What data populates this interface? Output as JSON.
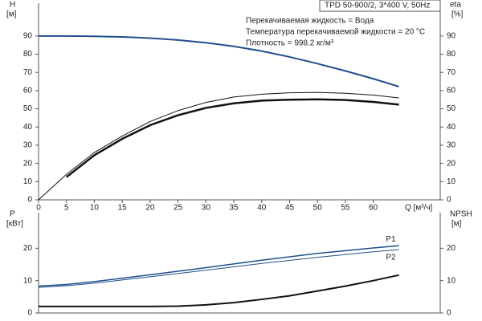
{
  "chart_data": [
    {
      "type": "line",
      "title": "TPD 50-900/2, 3*400 V, 50Hz",
      "annotations": [
        "Перекачиваемая жидкость = Вода",
        "Температура перекачиваемой жидкости = 20 °C",
        "Плотность = 998.2 кг/м³"
      ],
      "ylabel": "H",
      "yunit": "[м]",
      "y2label": "eta",
      "y2unit": "[%]",
      "xlabel": "Q [м³/ч]",
      "xlim": [
        0,
        72
      ],
      "xticks": [
        0,
        5,
        10,
        15,
        20,
        25,
        30,
        35,
        40,
        45,
        50,
        55,
        60
      ],
      "ylim": [
        0,
        108
      ],
      "yticks": [
        0,
        10,
        20,
        30,
        40,
        50,
        60,
        70,
        80,
        90
      ],
      "y2lim": [
        0,
        108
      ],
      "y2ticks": [
        0,
        10,
        20,
        30,
        40,
        50,
        60,
        70,
        80,
        90
      ],
      "grid": false,
      "series": [
        {
          "color": "#1f4e8c",
          "linewidth": 2,
          "x": [
            0,
            5,
            10,
            15,
            20,
            25,
            30,
            35,
            40,
            45,
            50,
            55,
            60,
            64.6
          ],
          "values": [
            90,
            90,
            89.8,
            89.5,
            88.8,
            87.8,
            86.3,
            84.3,
            81.7,
            78.5,
            74.8,
            70.8,
            66.5,
            62.2
          ]
        },
        {
          "color": "#111111",
          "linewidth": 1,
          "axis": "y2",
          "x": [
            0,
            5,
            10,
            15,
            20,
            25,
            30,
            35,
            40,
            45,
            50,
            55,
            60,
            64.6
          ],
          "values": [
            0,
            14,
            26,
            35,
            43,
            49,
            53.5,
            56.5,
            58,
            58.8,
            59,
            58.5,
            57.5,
            56
          ]
        },
        {
          "color": "#111111",
          "linewidth": 2.5,
          "axis": "y2",
          "x": [
            5,
            10,
            15,
            20,
            25,
            30,
            35,
            40,
            45,
            50,
            55,
            60,
            64.6
          ],
          "values": [
            12.5,
            24.5,
            33.5,
            41,
            46.5,
            50.5,
            53,
            54.5,
            55,
            55.2,
            54.8,
            53.8,
            52.3
          ]
        }
      ]
    },
    {
      "type": "line",
      "ylabel": "P",
      "yunit": "[кВт]",
      "y2label": "NPSH",
      "y2unit": "[м]",
      "xlim": [
        0,
        72
      ],
      "ylim": [
        0,
        31
      ],
      "yticks": [
        0,
        10,
        20
      ],
      "y2lim": [
        0,
        31
      ],
      "y2ticks": [
        0,
        10,
        20
      ],
      "grid": false,
      "series": [
        {
          "name": "P1",
          "color": "#1f4e8c",
          "linewidth": 1.5,
          "x": [
            0,
            5,
            10,
            20,
            30,
            40,
            50,
            60,
            64.6
          ],
          "values": [
            8.3,
            8.8,
            9.7,
            11.8,
            14.0,
            16.3,
            18.4,
            20.1,
            20.8
          ]
        },
        {
          "name": "P2",
          "color": "#1f4e8c",
          "linewidth": 1,
          "x": [
            0,
            5,
            10,
            20,
            30,
            40,
            50,
            60,
            64.6
          ],
          "values": [
            7.9,
            8.4,
            9.2,
            11.2,
            13.2,
            15.3,
            17.2,
            18.9,
            19.6
          ]
        },
        {
          "color": "#111111",
          "linewidth": 2,
          "axis": "y2",
          "x": [
            0,
            5,
            10,
            20,
            25,
            30,
            35,
            40,
            45,
            50,
            55,
            60,
            64.6
          ],
          "values": [
            2,
            2,
            2,
            2,
            2.1,
            2.5,
            3.2,
            4.2,
            5.3,
            6.8,
            8.3,
            10,
            11.7
          ]
        }
      ]
    }
  ]
}
